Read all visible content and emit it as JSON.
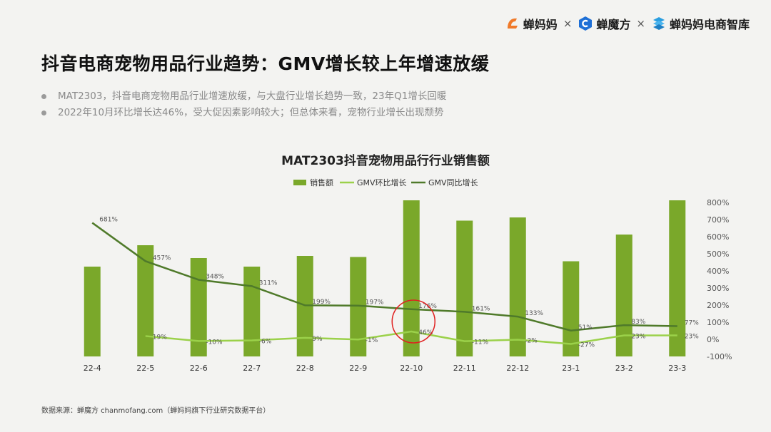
{
  "brands": {
    "b1": "蝉妈妈",
    "b2": "蝉魔方",
    "b3": "蝉妈妈电商智库",
    "sep": "×"
  },
  "headline": "抖音电商宠物用品行业趋势：GMV增长较上年增速放缓",
  "bullets": [
    "MAT2303，抖音电商宠物用品行业增速放缓，与大盘行业增长趋势一致，23年Q1增长回暖",
    "2022年10月环比增长达46%，受大促因素影响较大；但总体来看，宠物行业增长出现颓势"
  ],
  "source": "数据来源：蝉魔方 chanmofang.com（蝉妈妈旗下行业研究数据平台）",
  "colors": {
    "bar": "#7aa82a",
    "mom_line": "#9bd14a",
    "yoy_line": "#4f7a2a",
    "highlight": "#e02020"
  },
  "chart_data": {
    "type": "bar+line",
    "title": "MAT2303抖音宠物用品行行业销售额",
    "categories": [
      "22-4",
      "22-5",
      "22-6",
      "22-7",
      "22-8",
      "22-9",
      "22-10",
      "22-11",
      "22-12",
      "23-1",
      "23-2",
      "23-3"
    ],
    "series": [
      {
        "name": "销售额",
        "type": "bar",
        "values": [
          0.42,
          0.52,
          0.46,
          0.42,
          0.47,
          0.465,
          0.73,
          0.635,
          0.65,
          0.445,
          0.57,
          0.73
        ]
      },
      {
        "name": "GMV环比增长",
        "type": "line",
        "axis": "right",
        "values": [
          null,
          19,
          -10,
          -6,
          9,
          -1,
          46,
          -11,
          -2,
          -27,
          23,
          23
        ],
        "labels": [
          "",
          "19%",
          "-10%",
          "-6%",
          "9%",
          "-1%",
          "46%",
          "-11%",
          "-2%",
          "-27%",
          "23%",
          "23%"
        ]
      },
      {
        "name": "GMV同比增长",
        "type": "line",
        "axis": "right",
        "values": [
          681,
          457,
          348,
          311,
          199,
          197,
          176,
          161,
          133,
          51,
          83,
          77
        ],
        "labels": [
          "681%",
          "457%",
          "348%",
          "311%",
          "199%",
          "197%",
          "176%",
          "161%",
          "133%",
          "51%",
          "83%",
          "77%"
        ]
      }
    ],
    "y_right": {
      "min": -100,
      "max": 800,
      "ticks": [
        "800%",
        "700%",
        "600%",
        "500%",
        "400%",
        "300%",
        "200%",
        "100%",
        "0%",
        "-100%"
      ]
    },
    "highlight_category": "22-10",
    "legend_position": "top-center",
    "grid": false
  }
}
